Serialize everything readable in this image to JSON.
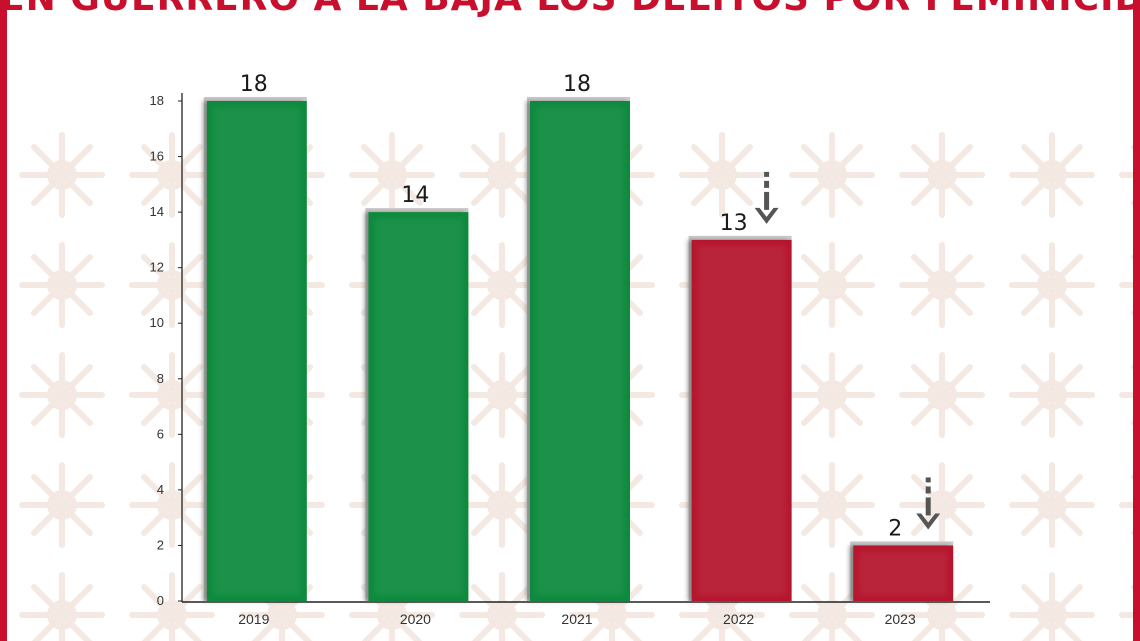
{
  "title": "EN GUERRERO A LA BAJA LOS DELITOS POR FEMINICIDIO",
  "colors": {
    "frame": "#c8102e",
    "title": "#c8102e",
    "bar_green": "#0d8a3c",
    "bar_red": "#b5122e",
    "arrow": "#555555",
    "pattern": "#f3e7df"
  },
  "chart_data": {
    "type": "bar",
    "title": "EN GUERRERO A LA BAJA LOS DELITOS POR FEMINICIDIO",
    "xlabel": "",
    "ylabel": "",
    "categories": [
      "2019",
      "2020",
      "2021",
      "2022",
      "2023"
    ],
    "values": [
      18,
      14,
      18,
      13,
      2
    ],
    "data_labels": [
      "18",
      "14",
      "18",
      "13",
      "2"
    ],
    "bar_colors": [
      "#0d8a3c",
      "#0d8a3c",
      "#0d8a3c",
      "#b5122e",
      "#b5122e"
    ],
    "down_arrows": [
      false,
      false,
      false,
      true,
      true
    ],
    "ylim": [
      0,
      18
    ],
    "yticks": [
      0,
      2,
      4,
      6,
      8,
      10,
      12,
      14,
      16,
      18
    ],
    "grid": false,
    "legend": "none"
  }
}
